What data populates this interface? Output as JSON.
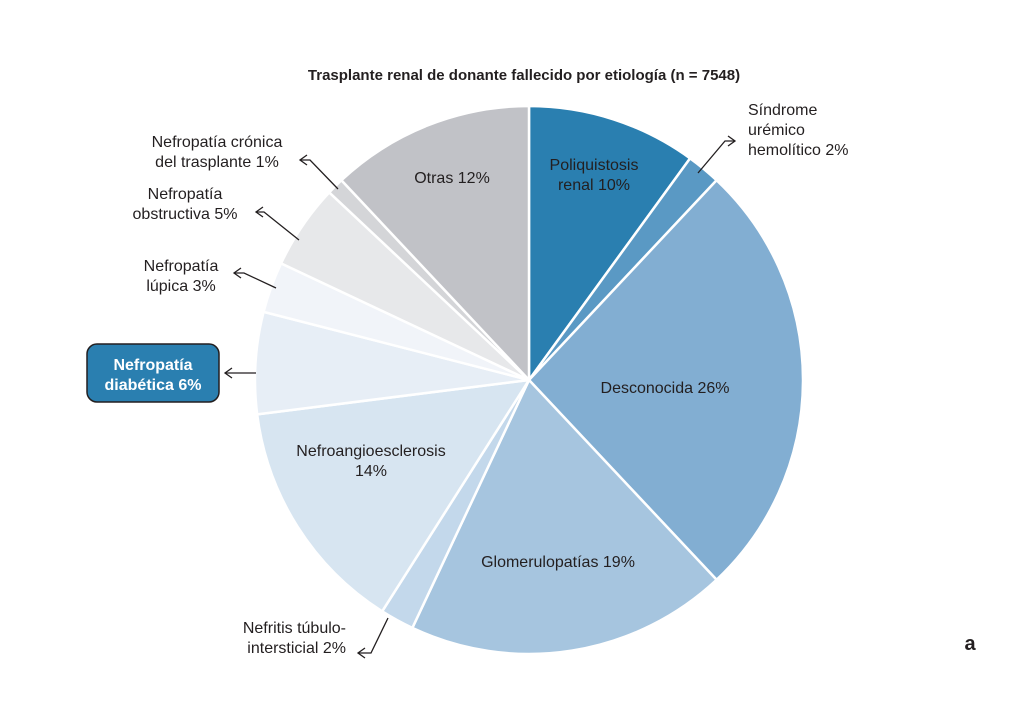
{
  "chart_data": {
    "type": "pie",
    "title": "Trasplante renal de donante fallecido por etiología (n = 7548)",
    "panel_label": "a",
    "start_angle_deg": 0,
    "direction": "clockwise",
    "slices": [
      {
        "label_lines": [
          "Poliquistosis",
          "renal 10%"
        ],
        "value": 10,
        "color": "#2a7fb0"
      },
      {
        "label_lines": [
          "Síndrome",
          "urémico",
          "hemolítico 2%"
        ],
        "value": 2,
        "color": "#5a99c4"
      },
      {
        "label_lines": [
          "Desconocida 26%"
        ],
        "value": 26,
        "color": "#82aed2"
      },
      {
        "label_lines": [
          "Glomerulopatías 19%"
        ],
        "value": 19,
        "color": "#a6c5df"
      },
      {
        "label_lines": [
          "Nefritis túbulo-",
          "intersticial 2%"
        ],
        "value": 2,
        "color": "#c3d8eb"
      },
      {
        "label_lines": [
          "Nefroangioesclerosis",
          "14%"
        ],
        "value": 14,
        "color": "#d7e5f1"
      },
      {
        "label_lines": [
          "Nefropatía",
          "diabética 6%"
        ],
        "value": 6,
        "color": "#e7eef6",
        "highlight": true
      },
      {
        "label_lines": [
          "Nefropatía",
          "lúpica 3%"
        ],
        "value": 3,
        "color": "#f1f4f9"
      },
      {
        "label_lines": [
          "Nefropatía",
          "obstructiva 5%"
        ],
        "value": 5,
        "color": "#e7e8ea"
      },
      {
        "label_lines": [
          "Nefropatía crónica",
          "del trasplante 1%"
        ],
        "value": 1,
        "color": "#d4d5d8"
      },
      {
        "label_lines": [
          "Otras 12%"
        ],
        "value": 12,
        "color": "#c1c2c7"
      }
    ],
    "highlight_color": "#2a7fb0"
  }
}
